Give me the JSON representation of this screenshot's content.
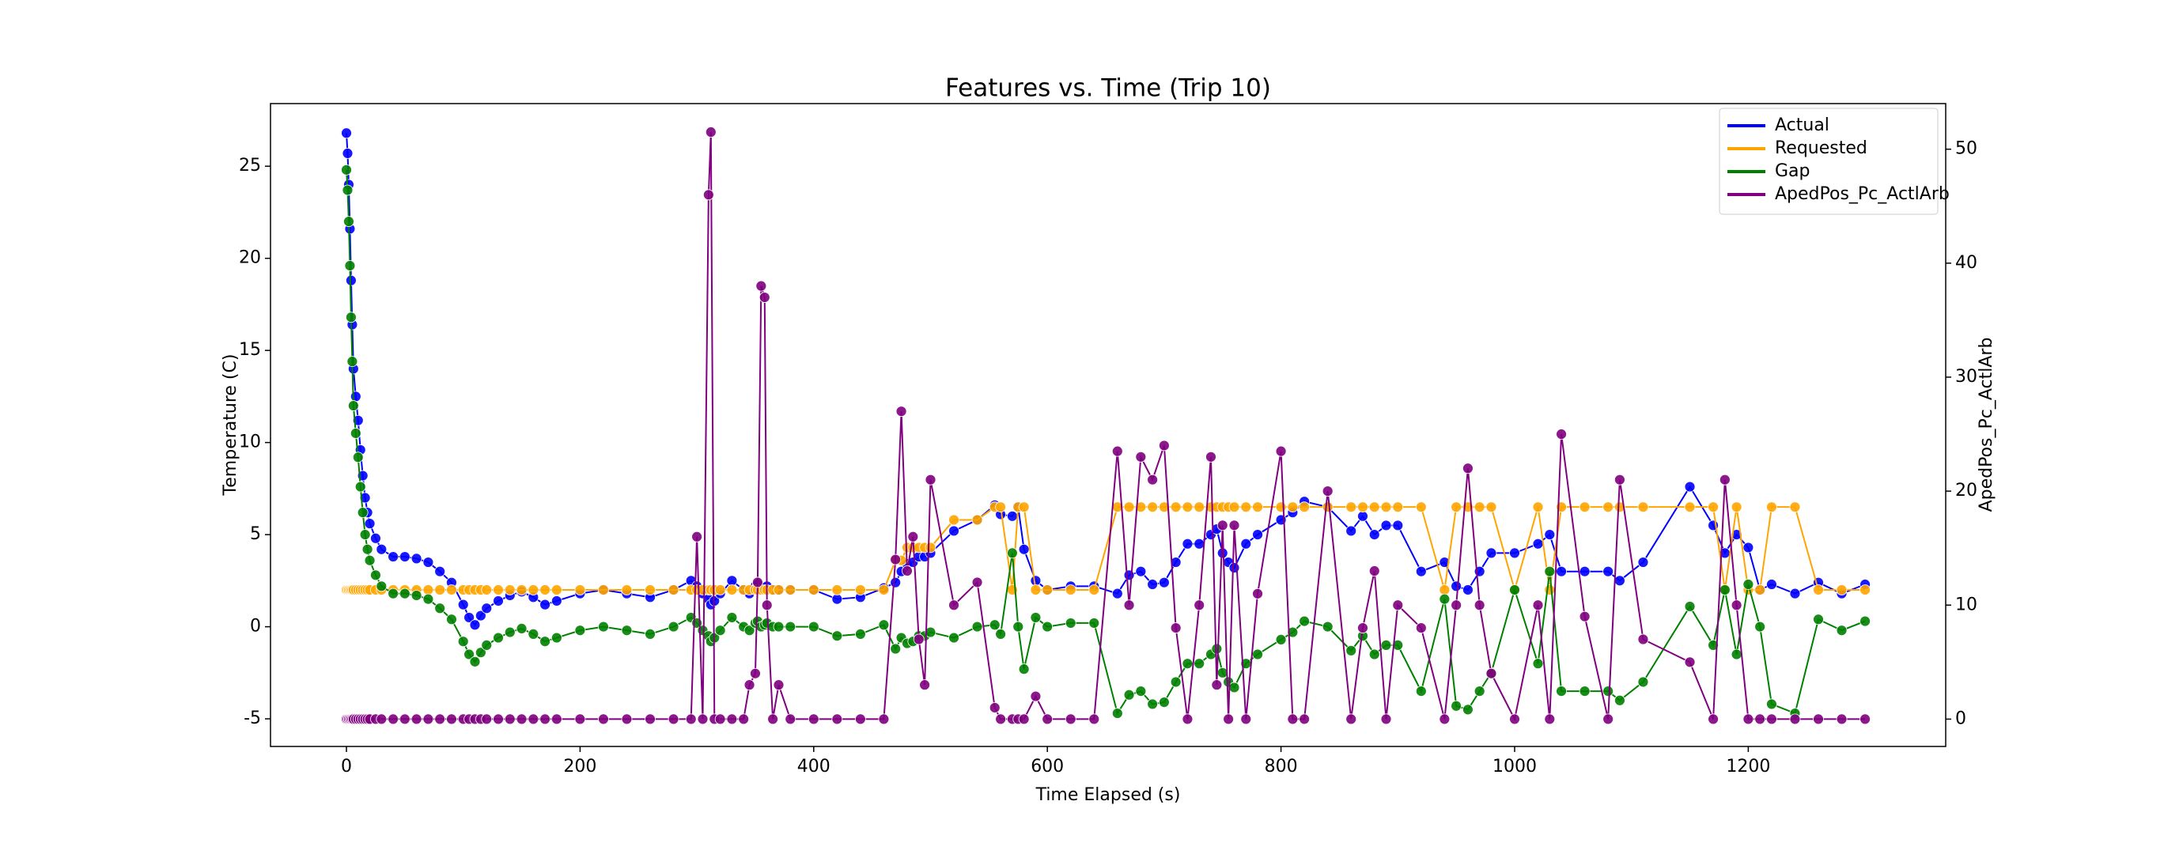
{
  "chart_data": {
    "type": "line",
    "title": "Features vs. Time (Trip 10)",
    "x_label": "Time Elapsed (s)",
    "y_label": "Temperature (C)",
    "y2_label": "ApedPos_Pc_ActlArb",
    "x": [
      0,
      1,
      2,
      3,
      4,
      5,
      6,
      8,
      10,
      12,
      14,
      16,
      18,
      20,
      25,
      30,
      40,
      50,
      60,
      70,
      80,
      90,
      100,
      105,
      110,
      115,
      120,
      130,
      140,
      150,
      160,
      170,
      180,
      200,
      220,
      240,
      260,
      280,
      295,
      300,
      305,
      310,
      312,
      315,
      320,
      330,
      340,
      345,
      350,
      352,
      355,
      358,
      360,
      365,
      370,
      380,
      400,
      420,
      440,
      460,
      470,
      475,
      480,
      485,
      490,
      495,
      500,
      520,
      540,
      555,
      560,
      570,
      575,
      580,
      590,
      600,
      620,
      640,
      660,
      670,
      680,
      690,
      700,
      710,
      720,
      730,
      740,
      745,
      750,
      755,
      760,
      770,
      780,
      800,
      810,
      820,
      840,
      860,
      870,
      880,
      890,
      900,
      920,
      940,
      950,
      960,
      970,
      980,
      1000,
      1020,
      1030,
      1040,
      1060,
      1080,
      1090,
      1110,
      1150,
      1170,
      1180,
      1190,
      1200,
      1210,
      1220,
      1240,
      1260,
      1280,
      1300
    ],
    "series": [
      {
        "name": "Actual",
        "color": "#0000ff",
        "axis": "y",
        "values": [
          26.8,
          25.7,
          24.0,
          21.6,
          18.8,
          16.4,
          14.0,
          12.5,
          11.2,
          9.6,
          8.2,
          7.0,
          6.2,
          5.6,
          4.8,
          4.2,
          3.8,
          3.8,
          3.7,
          3.5,
          3.0,
          2.4,
          1.2,
          0.5,
          0.1,
          0.6,
          1.0,
          1.4,
          1.7,
          1.9,
          1.6,
          1.2,
          1.4,
          1.8,
          2.0,
          1.8,
          1.6,
          2.0,
          2.5,
          2.2,
          1.8,
          1.5,
          1.2,
          1.4,
          1.8,
          2.5,
          2.0,
          1.8,
          2.2,
          2.3,
          2.0,
          2.1,
          2.2,
          2.0,
          2.0,
          2.0,
          2.0,
          1.5,
          1.6,
          2.1,
          2.4,
          3.0,
          3.4,
          3.5,
          3.8,
          3.8,
          4.0,
          5.2,
          5.8,
          6.6,
          6.1,
          6.0,
          6.5,
          4.2,
          2.5,
          2.0,
          2.2,
          2.2,
          1.8,
          2.8,
          3.0,
          2.3,
          2.4,
          3.5,
          4.5,
          4.5,
          5.0,
          5.3,
          4.0,
          3.5,
          3.2,
          4.5,
          5.0,
          5.8,
          6.2,
          6.8,
          6.5,
          5.2,
          6.0,
          5.0,
          5.5,
          5.5,
          3.0,
          3.5,
          2.2,
          2.0,
          3.0,
          4.0,
          4.0,
          4.5,
          5.0,
          3.0,
          3.0,
          3.0,
          2.5,
          3.5,
          7.6,
          5.5,
          4.0,
          5.0,
          4.3,
          2.0,
          2.3,
          1.8,
          2.4,
          1.8,
          2.3
        ]
      },
      {
        "name": "Requested",
        "color": "#ffa500",
        "axis": "y",
        "values": [
          2,
          2,
          2,
          2,
          2,
          2,
          2,
          2,
          2,
          2,
          2,
          2,
          2,
          2,
          2,
          2,
          2,
          2,
          2,
          2,
          2,
          2,
          2,
          2,
          2,
          2,
          2,
          2,
          2,
          2,
          2,
          2,
          2,
          2,
          2,
          2,
          2,
          2,
          2,
          2,
          2,
          2,
          2,
          2,
          2,
          2,
          2,
          2,
          2,
          2,
          2,
          2,
          2,
          2,
          2,
          2,
          2,
          2,
          2,
          2,
          3.6,
          3.6,
          4.3,
          4.3,
          4.3,
          4.3,
          4.3,
          5.8,
          5.8,
          6.5,
          6.5,
          2,
          6.5,
          6.5,
          2,
          2,
          2,
          2,
          6.5,
          6.5,
          6.5,
          6.5,
          6.5,
          6.5,
          6.5,
          6.5,
          6.5,
          6.5,
          6.5,
          6.5,
          6.5,
          6.5,
          6.5,
          6.5,
          6.5,
          6.5,
          6.5,
          6.5,
          6.5,
          6.5,
          6.5,
          6.5,
          6.5,
          2,
          6.5,
          6.5,
          6.5,
          6.5,
          2,
          6.5,
          2,
          6.5,
          6.5,
          6.5,
          6.5,
          6.5,
          6.5,
          6.5,
          2,
          6.5,
          2,
          2,
          6.5,
          6.5,
          2,
          2,
          2
        ]
      },
      {
        "name": "Gap",
        "color": "#008000",
        "axis": "y",
        "values": [
          24.8,
          23.7,
          22.0,
          19.6,
          16.8,
          14.4,
          12.0,
          10.5,
          9.2,
          7.6,
          6.2,
          5.0,
          4.2,
          3.6,
          2.8,
          2.2,
          1.8,
          1.8,
          1.7,
          1.5,
          1.0,
          0.4,
          -0.8,
          -1.5,
          -1.9,
          -1.4,
          -1.0,
          -0.6,
          -0.3,
          -0.1,
          -0.4,
          -0.8,
          -0.6,
          -0.2,
          0.0,
          -0.2,
          -0.4,
          0.0,
          0.5,
          0.2,
          -0.2,
          -0.5,
          -0.8,
          -0.6,
          -0.2,
          0.5,
          0.0,
          -0.2,
          0.2,
          0.3,
          0.0,
          0.1,
          0.2,
          0.0,
          0.0,
          0.0,
          0.0,
          -0.5,
          -0.4,
          0.1,
          -1.2,
          -0.6,
          -0.9,
          -0.8,
          -0.5,
          -0.5,
          -0.3,
          -0.6,
          0.0,
          0.1,
          -0.4,
          4.0,
          0.0,
          -2.3,
          0.5,
          0.0,
          0.2,
          0.2,
          -4.7,
          -3.7,
          -3.5,
          -4.2,
          -4.1,
          -3.0,
          -2.0,
          -2.0,
          -1.5,
          -1.2,
          -2.5,
          -3.0,
          -3.3,
          -2.0,
          -1.5,
          -0.7,
          -0.3,
          0.3,
          0.0,
          -1.3,
          -0.5,
          -1.5,
          -1.0,
          -1.0,
          -3.5,
          1.5,
          -4.3,
          -4.5,
          -3.5,
          -2.5,
          2.0,
          -2.0,
          3.0,
          -3.5,
          -3.5,
          -3.5,
          -4.0,
          -3.0,
          1.1,
          -1.0,
          2.0,
          -1.5,
          2.3,
          0.0,
          -4.2,
          -4.7,
          0.4,
          -0.2,
          0.3
        ]
      },
      {
        "name": "ApedPos_Pc_ActlArb",
        "color": "#800080",
        "axis": "y2",
        "values": [
          0,
          0,
          0,
          0,
          0,
          0,
          0,
          0,
          0,
          0,
          0,
          0,
          0,
          0,
          0,
          0,
          0,
          0,
          0,
          0,
          0,
          0,
          0,
          0,
          0,
          0,
          0,
          0,
          0,
          0,
          0,
          0,
          0,
          0,
          0,
          0,
          0,
          0,
          0,
          16,
          0,
          46,
          51.5,
          0,
          0,
          0,
          0,
          3,
          4,
          12,
          38,
          37,
          10,
          0,
          3,
          0,
          0,
          0,
          0,
          0,
          14,
          27,
          13,
          16,
          7,
          3,
          21,
          10,
          12,
          1,
          0,
          0,
          0,
          0,
          2,
          0,
          0,
          0,
          23.5,
          10,
          23,
          21,
          24,
          8,
          0,
          10,
          23,
          3,
          17,
          0,
          17,
          0,
          11,
          23.5,
          0,
          0,
          20,
          0,
          8,
          13,
          0,
          10,
          8,
          0,
          10,
          22,
          10,
          4,
          0,
          10,
          0,
          25,
          9,
          0,
          21,
          7,
          5,
          0,
          21,
          10,
          0,
          0,
          0,
          0,
          0,
          0,
          0
        ]
      }
    ],
    "xlim": [
      -65,
      1369
    ],
    "xticks": [
      0,
      200,
      400,
      600,
      800,
      1000,
      1200
    ],
    "ylim": [
      -6.5,
      28.4
    ],
    "yticks": [
      -5,
      0,
      5,
      10,
      15,
      20,
      25
    ],
    "y2lim": [
      -2.4,
      54
    ],
    "y2ticks": [
      0,
      10,
      20,
      30,
      40,
      50
    ],
    "legend": "upper right",
    "grid": false,
    "markers": true
  }
}
